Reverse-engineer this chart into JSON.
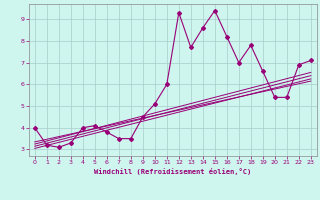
{
  "xlabel": "Windchill (Refroidissement éolien,°C)",
  "xlim": [
    -0.5,
    23.5
  ],
  "ylim": [
    2.7,
    9.7
  ],
  "xticks": [
    0,
    1,
    2,
    3,
    4,
    5,
    6,
    7,
    8,
    9,
    10,
    11,
    12,
    13,
    14,
    15,
    16,
    17,
    18,
    19,
    20,
    21,
    22,
    23
  ],
  "yticks": [
    3,
    4,
    5,
    6,
    7,
    8,
    9
  ],
  "bg_color": "#cef5ee",
  "grid_color": "#aacccc",
  "line_color": "#990077",
  "main_x": [
    0,
    1,
    2,
    3,
    4,
    5,
    6,
    7,
    8,
    9,
    10,
    11,
    12,
    13,
    14,
    15,
    16,
    17,
    18,
    19,
    20,
    21,
    22,
    23
  ],
  "main_y": [
    4.0,
    3.2,
    3.1,
    3.3,
    4.0,
    4.1,
    3.8,
    3.5,
    3.5,
    4.5,
    5.1,
    6.0,
    9.3,
    7.7,
    8.6,
    9.4,
    8.2,
    7.0,
    7.8,
    6.6,
    5.4,
    5.4,
    6.9,
    7.1
  ],
  "reg_lines": [
    {
      "x": [
        0,
        23
      ],
      "y": [
        3.05,
        6.25
      ]
    },
    {
      "x": [
        0,
        23
      ],
      "y": [
        3.15,
        6.4
      ]
    },
    {
      "x": [
        0,
        23
      ],
      "y": [
        3.25,
        6.55
      ]
    },
    {
      "x": [
        0,
        23
      ],
      "y": [
        3.35,
        6.15
      ]
    }
  ]
}
